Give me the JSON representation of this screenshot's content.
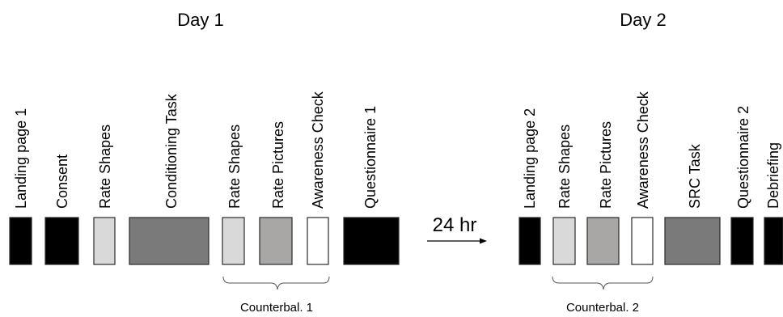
{
  "day1": {
    "title": "Day 1",
    "steps": [
      {
        "label": "Landing page 1",
        "color": "#000000",
        "border": "#1f3a8f"
      },
      {
        "label": "Consent",
        "color": "#000000",
        "border": "#1f3a8f"
      },
      {
        "label": "Rate Shapes",
        "color": "#d9d9d9",
        "border": "#2a2a2a"
      },
      {
        "label": "Conditioning Task",
        "color": "#7a7a7a",
        "border": "#2a2a2a"
      },
      {
        "label": "Rate Shapes",
        "color": "#d9d9d9",
        "border": "#2a2a2a"
      },
      {
        "label": "Rate Pictures",
        "color": "#a9a6a6",
        "border": "#2a2a2a"
      },
      {
        "label": "Awareness Check",
        "color": "#ffffff",
        "border": "#2a2a2a"
      },
      {
        "label": "Questionnaire 1",
        "color": "#000000",
        "border": "#000000"
      }
    ],
    "counterbalance_label": "Counterbal. 1"
  },
  "gap_label": "24 hr",
  "day2": {
    "title": "Day 2",
    "steps": [
      {
        "label": "Landing page 2",
        "color": "#000000",
        "border": "#000000"
      },
      {
        "label": "Rate Shapes",
        "color": "#d9d9d9",
        "border": "#2a2a2a"
      },
      {
        "label": "Rate Pictures",
        "color": "#a9a6a6",
        "border": "#2a2a2a"
      },
      {
        "label": "Awareness Check",
        "color": "#ffffff",
        "border": "#2a2a2a"
      },
      {
        "label": "SRC Task",
        "color": "#7a7a7a",
        "border": "#2a2a2a"
      },
      {
        "label": "Questionnaire 2",
        "color": "#000000",
        "border": "#000000"
      },
      {
        "label": "Debriefing",
        "color": "#000000",
        "border": "#000000"
      }
    ],
    "counterbalance_label": "Counterbal. 2"
  }
}
